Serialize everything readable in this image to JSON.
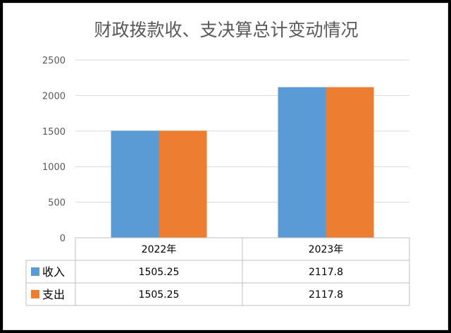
{
  "chart_data": {
    "type": "bar",
    "title": "财政拨款收、支决算总计变动情况",
    "categories": [
      "2022年",
      "2023年"
    ],
    "series": [
      {
        "name": "收入",
        "values": [
          1505.25,
          2117.8
        ],
        "value_labels": [
          "1505.25",
          "2117.8"
        ],
        "color": "#5B9BD5"
      },
      {
        "name": "支出",
        "values": [
          1505.25,
          2117.8
        ],
        "value_labels": [
          "1505.25",
          "2117.8"
        ],
        "color": "#ED7D31"
      }
    ],
    "ylim": [
      0,
      2500
    ],
    "yticks": [
      0,
      500,
      1000,
      1500,
      2000,
      2500
    ],
    "grid": true,
    "data_table": true,
    "legend": "data-table"
  }
}
